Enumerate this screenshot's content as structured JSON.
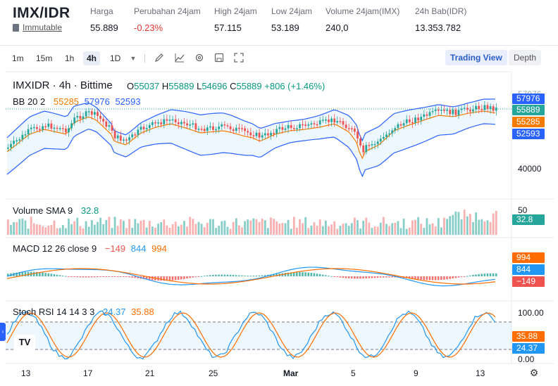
{
  "header": {
    "pair": "IMX/IDR",
    "project_label": "Immutable",
    "stats": [
      {
        "key": "Harga",
        "value": "55.889",
        "negative": false
      },
      {
        "key": "Perubahan 24jam",
        "value": "-0.23%",
        "negative": true
      },
      {
        "key": "High 24jam",
        "value": "57.115",
        "negative": false
      },
      {
        "key": "Low 24jam",
        "value": "53.189",
        "negative": false
      },
      {
        "key": "Volume 24jam(IMX)",
        "value": "240,0",
        "negative": false
      },
      {
        "key": "24h Bab(IDR)",
        "value": "13.353.782",
        "negative": false
      }
    ]
  },
  "toolbar": {
    "intervals": [
      "1m",
      "15m",
      "1h",
      "4h",
      "1D"
    ],
    "active_interval": "4h",
    "icons": [
      "dropdown-icon",
      "draw-icon",
      "indicator-icon",
      "settings-icon",
      "save-icon",
      "fullscreen-icon"
    ],
    "views": [
      "Trading View",
      "Depth"
    ],
    "active_view": "Trading View"
  },
  "legend": {
    "symbol": "IMXIDR · 4h · Bittime",
    "o_label": "O",
    "o": "55037",
    "h_label": "H",
    "h": "55889",
    "l_label": "L",
    "l": "54696",
    "c_label": "C",
    "c": "55889",
    "change": "+806 (+1.46%)",
    "bb_label": "BB 20 2",
    "bb_mid": "55285",
    "bb_upper": "57976",
    "bb_lower": "52593",
    "vol_label": "Volume SMA 9",
    "vol_value": "32.8",
    "macd_label": "MACD 12 26 close 9",
    "macd_hist": "−149",
    "macd": "844",
    "macd_signal": "994",
    "rsi_label": "Stoch RSI 14 14 3 3",
    "rsi_k": "24.37",
    "rsi_d": "35.88"
  },
  "price_axis": {
    "top_label": "57976",
    "level_40000": "40000",
    "tags": {
      "upper": "57976",
      "last": "55889",
      "mid": "55285",
      "lower": "52593"
    },
    "vol_tick": "50",
    "vol_tag": "32.8",
    "macd_tags": {
      "signal": "994",
      "macd": "844",
      "hist": "−149"
    },
    "rsi_ticks": [
      "100.00",
      "0.00"
    ],
    "rsi_tags": {
      "d": "35.88",
      "k": "24.37"
    }
  },
  "time_axis": [
    "13",
    "17",
    "21",
    "25",
    "Mar",
    "5",
    "9",
    "13"
  ],
  "colors": {
    "up": "#26a69a",
    "down": "#ef5350",
    "bb": "#2962ff",
    "basis": "#f57c00",
    "macd": "#2196f3",
    "signal": "#ff6d00",
    "last": "#26a69a",
    "label_green": "#089981"
  },
  "chart_data": {
    "type": "candlestick",
    "interval": "4h",
    "last_close": 55889,
    "bollinger": {
      "upper": 57976,
      "basis": 55285,
      "lower": 52593
    },
    "volume_sma": 32.8,
    "macd": {
      "macd": 844,
      "signal": 994,
      "histogram": -149
    },
    "stoch_rsi": {
      "k": 24.37,
      "d": 35.88,
      "range": [
        0,
        100
      ]
    }
  }
}
